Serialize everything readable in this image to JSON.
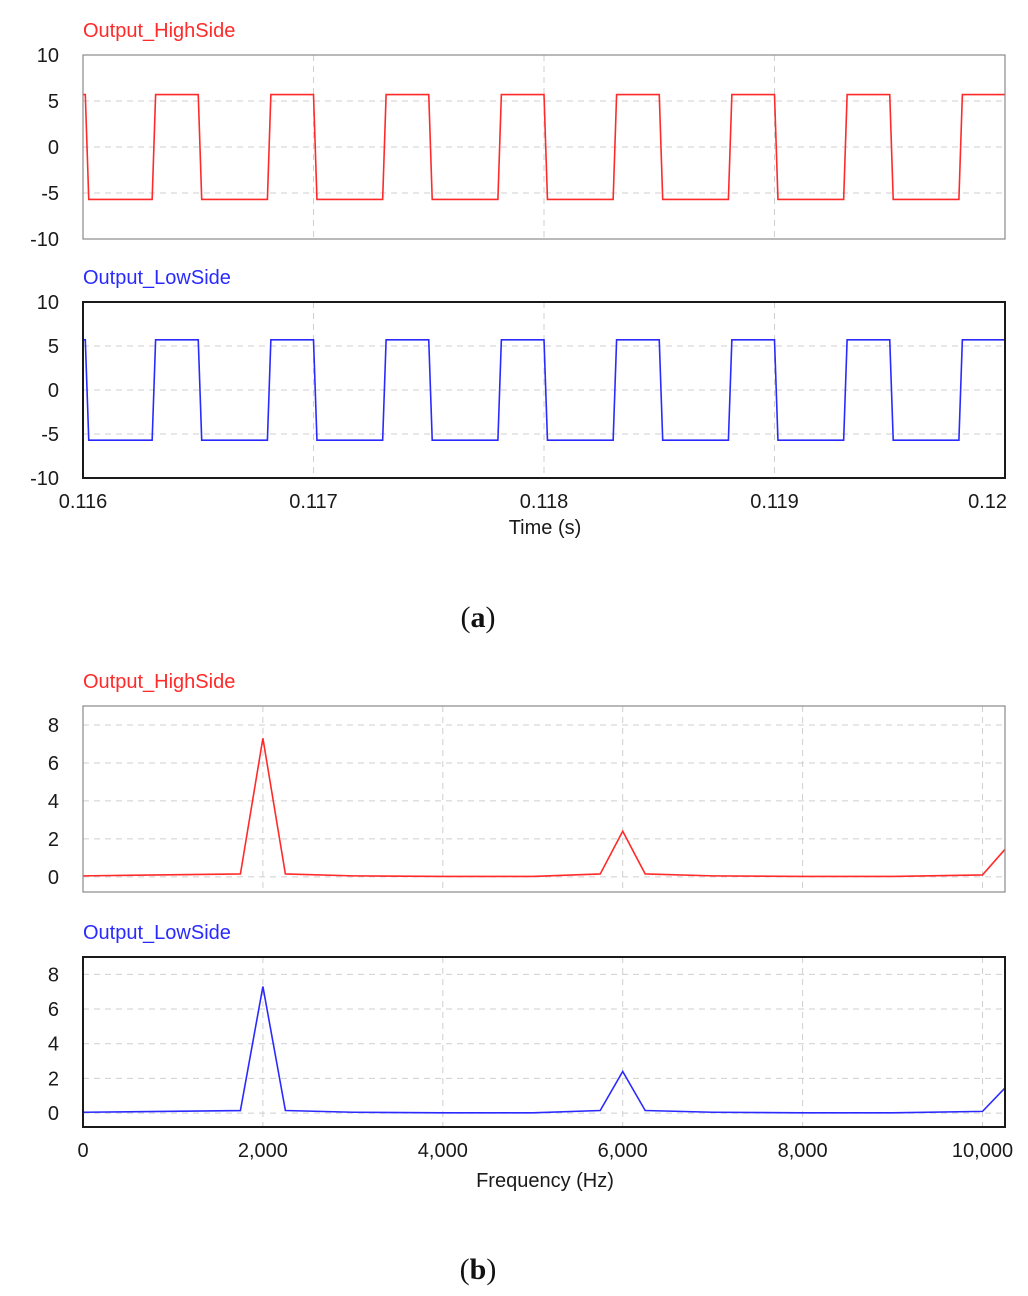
{
  "captions": {
    "a_open": "(",
    "a_letter": "a",
    "a_close": ")",
    "b_open": "(",
    "b_letter": "b",
    "b_close": ")"
  },
  "chart_data": [
    {
      "type": "line",
      "title": "Output_HighSide",
      "xlabel": "",
      "ylabel": "",
      "xlim": [
        0.116,
        0.12
      ],
      "ylim": [
        -10,
        10
      ],
      "yticks": [
        "10",
        "5",
        "0",
        "-5",
        "-10"
      ],
      "color": "#ff2a2a",
      "grid": true,
      "series": [
        {
          "name": "Output_HighSide",
          "x": [
            0.116,
            0.11601,
            0.116025,
            0.1163,
            0.116315,
            0.1165,
            0.116515,
            0.1168,
            0.116815,
            0.117,
            0.117015,
            0.1173,
            0.117315,
            0.1175,
            0.117515,
            0.1178,
            0.117815,
            0.118,
            0.118015,
            0.1183,
            0.118315,
            0.1185,
            0.118515,
            0.1188,
            0.118815,
            0.119,
            0.119015,
            0.1193,
            0.119315,
            0.1195,
            0.119515,
            0.1198,
            0.119815,
            0.12
          ],
          "y": [
            5.7,
            5.7,
            -5.7,
            -5.7,
            5.7,
            5.7,
            -5.7,
            -5.7,
            5.7,
            5.7,
            -5.7,
            -5.7,
            5.7,
            5.7,
            -5.7,
            -5.7,
            5.7,
            5.7,
            -5.7,
            -5.7,
            5.7,
            5.7,
            -5.7,
            -5.7,
            5.7,
            5.7,
            -5.7,
            -5.7,
            5.7,
            5.7,
            -5.7,
            -5.7,
            5.7,
            5.7
          ]
        }
      ]
    },
    {
      "type": "line",
      "title": "Output_LowSide",
      "xlabel": "Time (s)",
      "ylabel": "",
      "xlim": [
        0.116,
        0.12
      ],
      "ylim": [
        -10,
        10
      ],
      "xticks": [
        "0.116",
        "0.117",
        "0.118",
        "0.119",
        "0.12"
      ],
      "yticks": [
        "10",
        "5",
        "0",
        "-5",
        "-10"
      ],
      "color": "#2a2aff",
      "grid": true,
      "series": [
        {
          "name": "Output_LowSide",
          "x": [
            0.116,
            0.11601,
            0.116025,
            0.1163,
            0.116315,
            0.1165,
            0.116515,
            0.1168,
            0.116815,
            0.117,
            0.117015,
            0.1173,
            0.117315,
            0.1175,
            0.117515,
            0.1178,
            0.117815,
            0.118,
            0.118015,
            0.1183,
            0.118315,
            0.1185,
            0.118515,
            0.1188,
            0.118815,
            0.119,
            0.119015,
            0.1193,
            0.119315,
            0.1195,
            0.119515,
            0.1198,
            0.119815,
            0.12
          ],
          "y": [
            5.7,
            5.7,
            -5.7,
            -5.7,
            5.7,
            5.7,
            -5.7,
            -5.7,
            5.7,
            5.7,
            -5.7,
            -5.7,
            5.7,
            5.7,
            -5.7,
            -5.7,
            5.7,
            5.7,
            -5.7,
            -5.7,
            5.7,
            5.7,
            -5.7,
            -5.7,
            5.7,
            5.7,
            -5.7,
            -5.7,
            5.7,
            5.7,
            -5.7,
            -5.7,
            5.7,
            5.7
          ]
        }
      ]
    },
    {
      "type": "line",
      "title": "Output_HighSide",
      "xlabel": "",
      "ylabel": "",
      "xlim": [
        0,
        10250
      ],
      "ylim": [
        -0.8,
        9
      ],
      "yticks": [
        "8",
        "6",
        "4",
        "2",
        "0"
      ],
      "color": "#ff2a2a",
      "grid": true,
      "series": [
        {
          "name": "Output_HighSide",
          "x": [
            0,
            1750,
            2000,
            2250,
            3000,
            4000,
            5000,
            5750,
            6000,
            6250,
            7000,
            8000,
            9000,
            10000,
            10250
          ],
          "y": [
            0.05,
            0.15,
            7.3,
            0.15,
            0.05,
            0.02,
            0.02,
            0.15,
            2.4,
            0.15,
            0.05,
            0.02,
            0.02,
            0.1,
            1.45
          ]
        }
      ]
    },
    {
      "type": "line",
      "title": "Output_LowSide",
      "xlabel": "Frequency (Hz)",
      "ylabel": "",
      "xlim": [
        0,
        10250
      ],
      "ylim": [
        -0.8,
        9
      ],
      "xticks": [
        "0",
        "2,000",
        "4,000",
        "6,000",
        "8,000",
        "10,000"
      ],
      "yticks": [
        "8",
        "6",
        "4",
        "2",
        "0"
      ],
      "color": "#2a2aff",
      "grid": true,
      "series": [
        {
          "name": "Output_LowSide",
          "x": [
            0,
            1750,
            2000,
            2250,
            3000,
            4000,
            5000,
            5750,
            6000,
            6250,
            7000,
            8000,
            9000,
            10000,
            10250
          ],
          "y": [
            0.05,
            0.15,
            7.3,
            0.15,
            0.05,
            0.02,
            0.02,
            0.15,
            2.4,
            0.15,
            0.05,
            0.02,
            0.02,
            0.1,
            1.45
          ]
        }
      ]
    }
  ]
}
